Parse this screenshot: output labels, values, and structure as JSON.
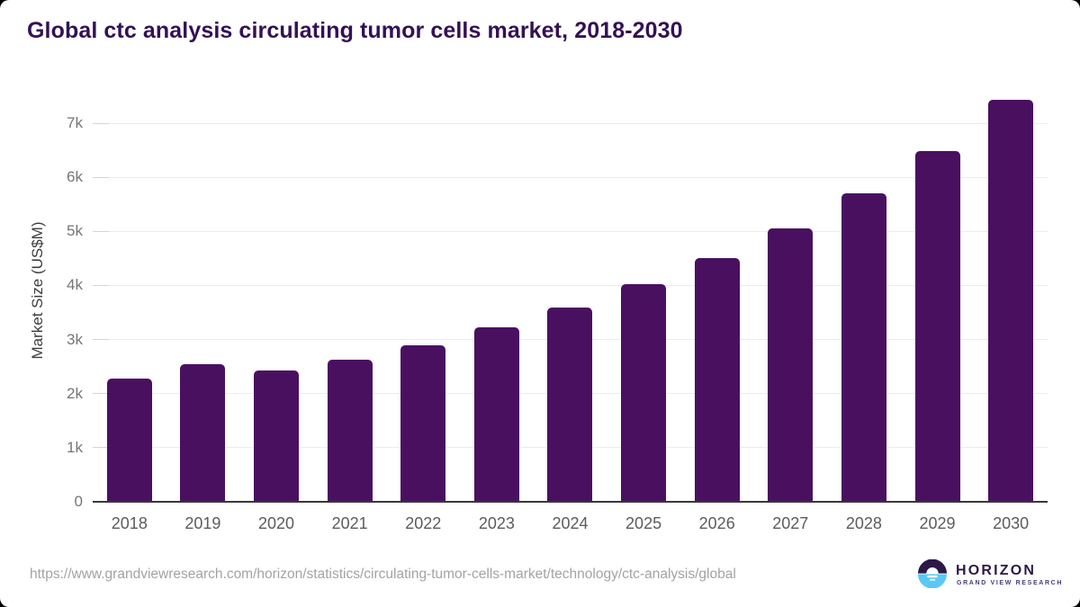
{
  "title": "Global ctc analysis circulating tumor cells market, 2018-2030",
  "colors": {
    "bar": "#4a1060",
    "title_text": "#331253",
    "gridline": "#ececec",
    "tick_dash": "#d5d5d5",
    "axis_line": "#383838",
    "y_tick_text": "#757575",
    "x_tick_text": "#5c5c5c",
    "url_text": "#a3a3a3",
    "logo_dark_purple": "#2d1847",
    "logo_light_blue": "#5ac8f5"
  },
  "chart_data": {
    "type": "bar",
    "title": "Global ctc analysis circulating tumor cells market, 2018-2030",
    "categories": [
      "2018",
      "2019",
      "2020",
      "2021",
      "2022",
      "2023",
      "2024",
      "2025",
      "2026",
      "2027",
      "2028",
      "2029",
      "2030"
    ],
    "values": [
      2280,
      2550,
      2420,
      2630,
      2890,
      3230,
      3590,
      4030,
      4500,
      5050,
      5700,
      6490,
      7440
    ],
    "xlabel": "",
    "ylabel": "Market Size (US$M)",
    "ylim": [
      0,
      7500
    ],
    "yticks": [
      0,
      1000,
      2000,
      3000,
      4000,
      5000,
      6000,
      7000
    ],
    "ytick_labels": [
      "0",
      "1k",
      "2k",
      "3k",
      "4k",
      "5k",
      "6k",
      "7k"
    ],
    "grid": true,
    "legend": false,
    "bar_color": "#4a1060"
  },
  "footer": {
    "source_url": "https://www.grandviewresearch.com/horizon/statistics/circulating-tumor-cells-market/technology/ctc-analysis/global",
    "logo": {
      "name": "HORIZON",
      "subtitle": "GRAND VIEW RESEARCH"
    }
  }
}
